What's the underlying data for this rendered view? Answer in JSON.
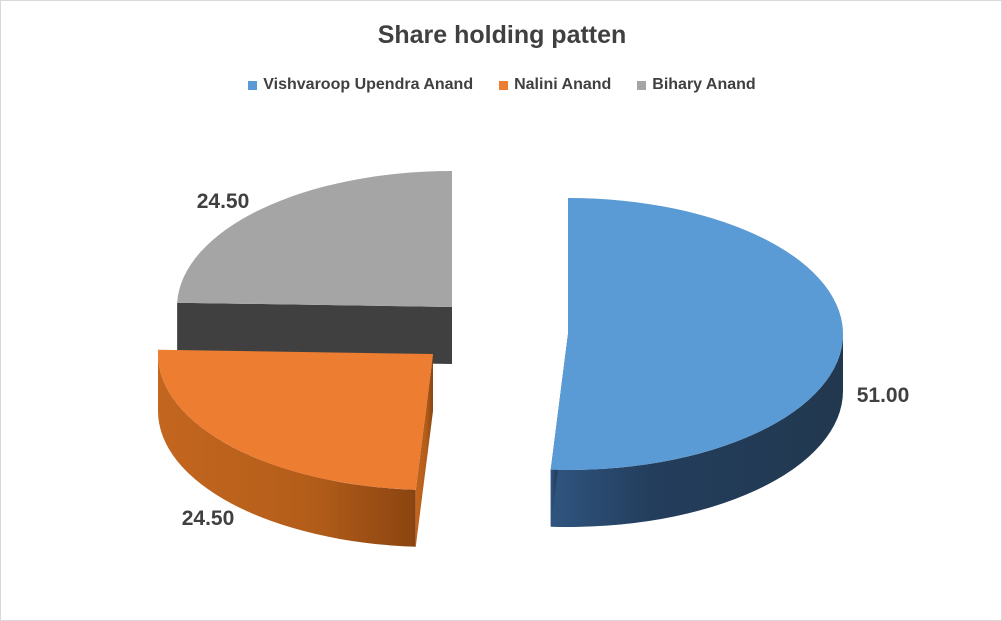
{
  "chart_data": {
    "type": "pie",
    "title": "Share holding patten",
    "legend_position": "top",
    "categories": [
      "Vishvaroop Upendra Anand",
      "Nalini Anand",
      "Bihary Anand"
    ],
    "values": [
      51.0,
      24.5,
      24.5
    ],
    "data_labels": [
      "51.00",
      "24.50",
      "24.50"
    ],
    "colors": [
      "#5b9bd5",
      "#ed7d31",
      "#a5a5a5"
    ],
    "exploded": true,
    "three_d": true
  }
}
